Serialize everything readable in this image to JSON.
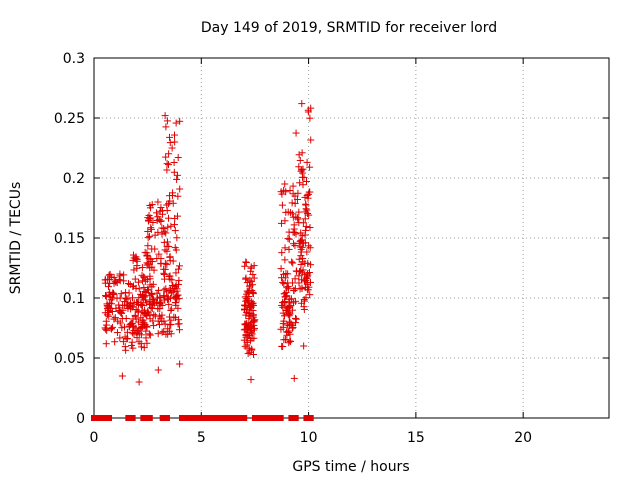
{
  "chart_data": {
    "type": "scatter",
    "title": "Day 149 of 2019, SRMTID for receiver lord",
    "xlabel": "GPS time / hours",
    "ylabel": "SRMTID / TECUs",
    "xlim": [
      0,
      24
    ],
    "ylim": [
      0,
      0.3
    ],
    "xticks": [
      "0",
      "5",
      "10",
      "15",
      "20"
    ],
    "yticks": [
      "0",
      "0.05",
      "0.1",
      "0.15",
      "0.2",
      "0.25",
      "0.3"
    ],
    "grid": true,
    "marker": "+",
    "color": "#e00000",
    "clusters": [
      {
        "x": [
          0.5,
          1.75
        ],
        "y_low": 0.035,
        "y_high": 0.12
      },
      {
        "x": [
          1.75,
          2.5
        ],
        "y_low": 0.03,
        "y_high": 0.138
      },
      {
        "x": [
          2.5,
          3.3
        ],
        "y_low": 0.04,
        "y_high": 0.18
      },
      {
        "x": [
          3.3,
          4.0
        ],
        "y_low": 0.045,
        "y_high": 0.252
      },
      {
        "x": [
          7.0,
          7.5
        ],
        "y_low": 0.032,
        "y_high": 0.13
      },
      {
        "x": [
          8.7,
          9.4
        ],
        "y_low": 0.033,
        "y_high": 0.195
      },
      {
        "x": [
          9.4,
          10.1
        ],
        "y_low": 0.06,
        "y_high": 0.262
      }
    ],
    "zero_segments": [
      [
        0.0,
        0.7
      ],
      [
        1.6,
        1.8
      ],
      [
        2.3,
        2.6
      ],
      [
        3.2,
        3.4
      ],
      [
        4.1,
        7.0
      ],
      [
        7.5,
        8.7
      ],
      [
        9.2,
        9.4
      ],
      [
        9.9,
        10.1
      ]
    ]
  }
}
